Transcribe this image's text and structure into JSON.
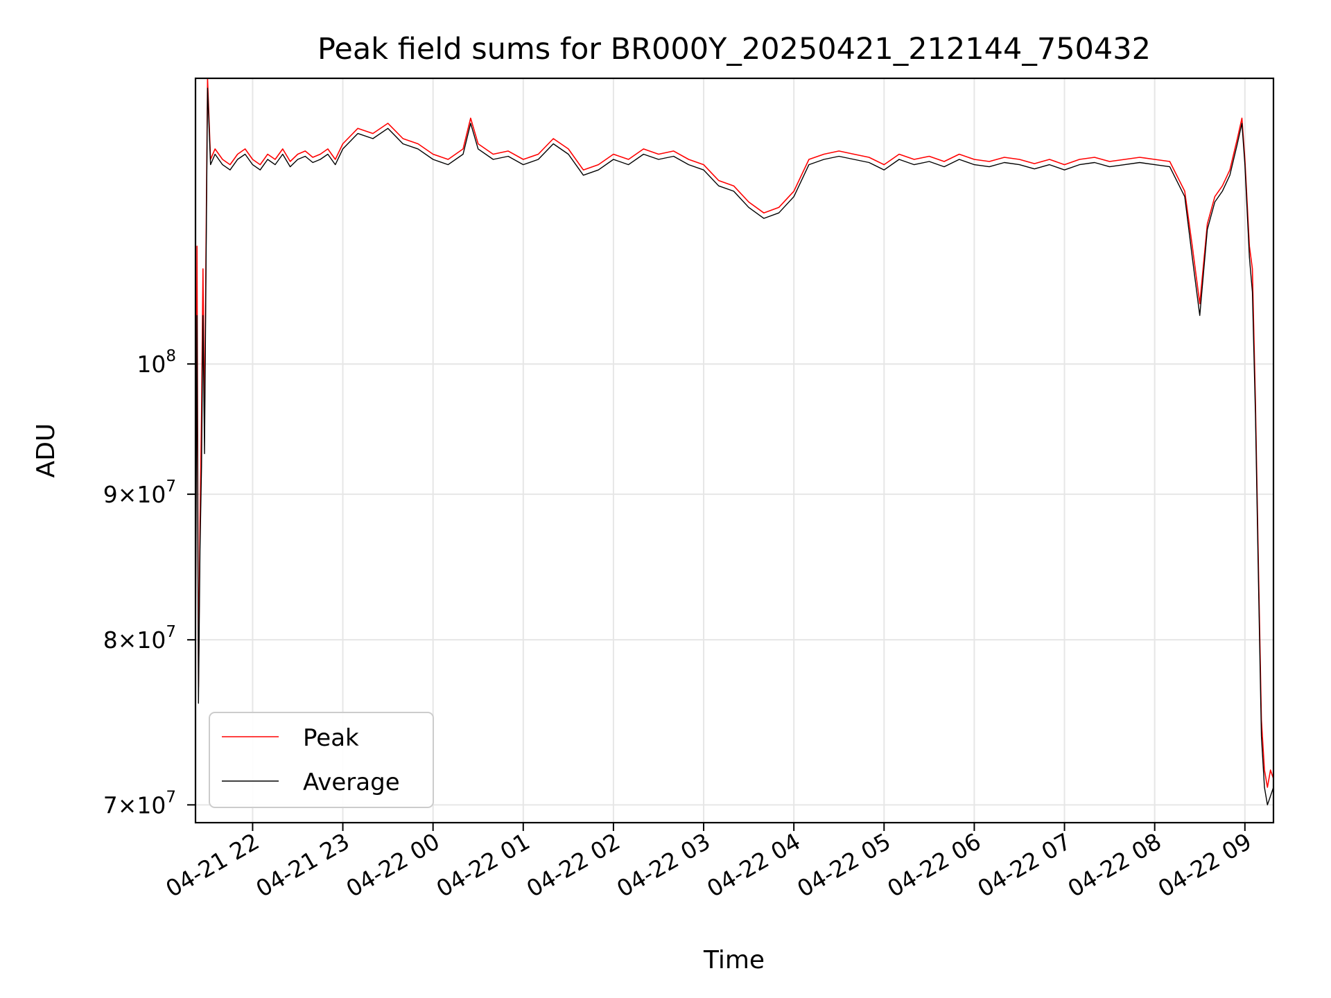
{
  "chart_data": {
    "type": "line",
    "title": "Peak field sums for BR000Y_20250421_212144_750432",
    "xlabel": "Time",
    "ylabel": "ADU",
    "y_scale": "log",
    "ylim": [
      69000000,
      126000000
    ],
    "xlim": [
      "2025-04-21 21:22",
      "2025-04-22 09:19"
    ],
    "grid": true,
    "legend_placement": "lower-left",
    "x_ticks": [
      {
        "t": "2025-04-21 22:00",
        "label": "04-21 22"
      },
      {
        "t": "2025-04-21 23:00",
        "label": "04-21 23"
      },
      {
        "t": "2025-04-22 00:00",
        "label": "04-22 00"
      },
      {
        "t": "2025-04-22 01:00",
        "label": "04-22 01"
      },
      {
        "t": "2025-04-22 02:00",
        "label": "04-22 02"
      },
      {
        "t": "2025-04-22 03:00",
        "label": "04-22 03"
      },
      {
        "t": "2025-04-22 04:00",
        "label": "04-22 04"
      },
      {
        "t": "2025-04-22 05:00",
        "label": "04-22 05"
      },
      {
        "t": "2025-04-22 06:00",
        "label": "04-22 06"
      },
      {
        "t": "2025-04-22 07:00",
        "label": "04-22 07"
      },
      {
        "t": "2025-04-22 08:00",
        "label": "04-22 08"
      },
      {
        "t": "2025-04-22 09:00",
        "label": "04-22 09"
      }
    ],
    "y_ticks": [
      {
        "v": 70000000,
        "base": "7×10",
        "exp": "7"
      },
      {
        "v": 80000000,
        "base": "8×10",
        "exp": "7"
      },
      {
        "v": 90000000,
        "base": "9×10",
        "exp": "7"
      },
      {
        "v": 100000000,
        "base": "10",
        "exp": "8"
      }
    ],
    "series": [
      {
        "name": "Peak",
        "color": "#ff0000",
        "points": [
          [
            "2025-04-21 21:22",
            80000000
          ],
          [
            "2025-04-21 21:23",
            110000000
          ],
          [
            "2025-04-21 21:24",
            77000000
          ],
          [
            "2025-04-21 21:25",
            88000000
          ],
          [
            "2025-04-21 21:26",
            96000000
          ],
          [
            "2025-04-21 21:27",
            108000000
          ],
          [
            "2025-04-21 21:28",
            95000000
          ],
          [
            "2025-04-21 21:29",
            110000000
          ],
          [
            "2025-04-21 21:30",
            126000000
          ],
          [
            "2025-04-21 21:32",
            118000000
          ],
          [
            "2025-04-21 21:35",
            119000000
          ],
          [
            "2025-04-21 21:40",
            118000000
          ],
          [
            "2025-04-21 21:45",
            117500000
          ],
          [
            "2025-04-21 21:50",
            118500000
          ],
          [
            "2025-04-21 21:55",
            119000000
          ],
          [
            "2025-04-21 22:00",
            118000000
          ],
          [
            "2025-04-21 22:05",
            117500000
          ],
          [
            "2025-04-21 22:10",
            118500000
          ],
          [
            "2025-04-21 22:15",
            118000000
          ],
          [
            "2025-04-21 22:20",
            119000000
          ],
          [
            "2025-04-21 22:25",
            117800000
          ],
          [
            "2025-04-21 22:30",
            118500000
          ],
          [
            "2025-04-21 22:35",
            118800000
          ],
          [
            "2025-04-21 22:40",
            118200000
          ],
          [
            "2025-04-21 22:45",
            118500000
          ],
          [
            "2025-04-21 22:50",
            119000000
          ],
          [
            "2025-04-21 22:55",
            118000000
          ],
          [
            "2025-04-21 23:00",
            119500000
          ],
          [
            "2025-04-21 23:10",
            121000000
          ],
          [
            "2025-04-21 23:20",
            120500000
          ],
          [
            "2025-04-21 23:30",
            121500000
          ],
          [
            "2025-04-21 23:40",
            120000000
          ],
          [
            "2025-04-21 23:50",
            119500000
          ],
          [
            "2025-04-22 00:00",
            118500000
          ],
          [
            "2025-04-22 00:10",
            118000000
          ],
          [
            "2025-04-22 00:20",
            119000000
          ],
          [
            "2025-04-22 00:25",
            122000000
          ],
          [
            "2025-04-22 00:30",
            119500000
          ],
          [
            "2025-04-22 00:40",
            118500000
          ],
          [
            "2025-04-22 00:50",
            118800000
          ],
          [
            "2025-04-22 01:00",
            118000000
          ],
          [
            "2025-04-22 01:10",
            118500000
          ],
          [
            "2025-04-22 01:20",
            120000000
          ],
          [
            "2025-04-22 01:30",
            119000000
          ],
          [
            "2025-04-22 01:40",
            117000000
          ],
          [
            "2025-04-22 01:50",
            117500000
          ],
          [
            "2025-04-22 02:00",
            118500000
          ],
          [
            "2025-04-22 02:10",
            118000000
          ],
          [
            "2025-04-22 02:20",
            119000000
          ],
          [
            "2025-04-22 02:30",
            118500000
          ],
          [
            "2025-04-22 02:40",
            118800000
          ],
          [
            "2025-04-22 02:50",
            118000000
          ],
          [
            "2025-04-22 03:00",
            117500000
          ],
          [
            "2025-04-22 03:10",
            116000000
          ],
          [
            "2025-04-22 03:20",
            115500000
          ],
          [
            "2025-04-22 03:30",
            114000000
          ],
          [
            "2025-04-22 03:40",
            113000000
          ],
          [
            "2025-04-22 03:50",
            113500000
          ],
          [
            "2025-04-22 04:00",
            115000000
          ],
          [
            "2025-04-22 04:10",
            118000000
          ],
          [
            "2025-04-22 04:20",
            118500000
          ],
          [
            "2025-04-22 04:30",
            118800000
          ],
          [
            "2025-04-22 04:40",
            118500000
          ],
          [
            "2025-04-22 04:50",
            118200000
          ],
          [
            "2025-04-22 05:00",
            117500000
          ],
          [
            "2025-04-22 05:10",
            118500000
          ],
          [
            "2025-04-22 05:20",
            118000000
          ],
          [
            "2025-04-22 05:30",
            118300000
          ],
          [
            "2025-04-22 05:40",
            117800000
          ],
          [
            "2025-04-22 05:50",
            118500000
          ],
          [
            "2025-04-22 06:00",
            118000000
          ],
          [
            "2025-04-22 06:10",
            117800000
          ],
          [
            "2025-04-22 06:20",
            118200000
          ],
          [
            "2025-04-22 06:30",
            118000000
          ],
          [
            "2025-04-22 06:40",
            117600000
          ],
          [
            "2025-04-22 06:50",
            118000000
          ],
          [
            "2025-04-22 07:00",
            117500000
          ],
          [
            "2025-04-22 07:10",
            118000000
          ],
          [
            "2025-04-22 07:20",
            118200000
          ],
          [
            "2025-04-22 07:30",
            117800000
          ],
          [
            "2025-04-22 07:40",
            118000000
          ],
          [
            "2025-04-22 07:50",
            118200000
          ],
          [
            "2025-04-22 08:00",
            118000000
          ],
          [
            "2025-04-22 08:10",
            117800000
          ],
          [
            "2025-04-22 08:20",
            115000000
          ],
          [
            "2025-04-22 08:25",
            110000000
          ],
          [
            "2025-04-22 08:30",
            105000000
          ],
          [
            "2025-04-22 08:35",
            112000000
          ],
          [
            "2025-04-22 08:40",
            114500000
          ],
          [
            "2025-04-22 08:45",
            115500000
          ],
          [
            "2025-04-22 08:50",
            117000000
          ],
          [
            "2025-04-22 08:55",
            120000000
          ],
          [
            "2025-04-22 08:58",
            122000000
          ],
          [
            "2025-04-22 09:00",
            118000000
          ],
          [
            "2025-04-22 09:03",
            110000000
          ],
          [
            "2025-04-22 09:05",
            108000000
          ],
          [
            "2025-04-22 09:07",
            97000000
          ],
          [
            "2025-04-22 09:09",
            85000000
          ],
          [
            "2025-04-22 09:11",
            75000000
          ],
          [
            "2025-04-22 09:13",
            72000000
          ],
          [
            "2025-04-22 09:15",
            71000000
          ],
          [
            "2025-04-22 09:17",
            72000000
          ],
          [
            "2025-04-22 09:19",
            71500000
          ]
        ]
      },
      {
        "name": "Average",
        "color": "#000000",
        "points": [
          [
            "2025-04-21 21:22",
            78000000
          ],
          [
            "2025-04-21 21:23",
            104000000
          ],
          [
            "2025-04-21 21:24",
            76000000
          ],
          [
            "2025-04-21 21:25",
            86000000
          ],
          [
            "2025-04-21 21:26",
            92000000
          ],
          [
            "2025-04-21 21:27",
            104000000
          ],
          [
            "2025-04-21 21:28",
            93000000
          ],
          [
            "2025-04-21 21:29",
            108000000
          ],
          [
            "2025-04-21 21:30",
            125000000
          ],
          [
            "2025-04-21 21:32",
            117500000
          ],
          [
            "2025-04-21 21:35",
            118500000
          ],
          [
            "2025-04-21 21:40",
            117500000
          ],
          [
            "2025-04-21 21:45",
            117000000
          ],
          [
            "2025-04-21 21:50",
            118000000
          ],
          [
            "2025-04-21 21:55",
            118500000
          ],
          [
            "2025-04-21 22:00",
            117500000
          ],
          [
            "2025-04-21 22:05",
            117000000
          ],
          [
            "2025-04-21 22:10",
            118000000
          ],
          [
            "2025-04-21 22:15",
            117500000
          ],
          [
            "2025-04-21 22:20",
            118500000
          ],
          [
            "2025-04-21 22:25",
            117300000
          ],
          [
            "2025-04-21 22:30",
            118000000
          ],
          [
            "2025-04-21 22:35",
            118300000
          ],
          [
            "2025-04-21 22:40",
            117700000
          ],
          [
            "2025-04-21 22:45",
            118000000
          ],
          [
            "2025-04-21 22:50",
            118500000
          ],
          [
            "2025-04-21 22:55",
            117500000
          ],
          [
            "2025-04-21 23:00",
            119000000
          ],
          [
            "2025-04-21 23:10",
            120500000
          ],
          [
            "2025-04-21 23:20",
            120000000
          ],
          [
            "2025-04-21 23:30",
            121000000
          ],
          [
            "2025-04-21 23:40",
            119500000
          ],
          [
            "2025-04-21 23:50",
            119000000
          ],
          [
            "2025-04-22 00:00",
            118000000
          ],
          [
            "2025-04-22 00:10",
            117500000
          ],
          [
            "2025-04-22 00:20",
            118500000
          ],
          [
            "2025-04-22 00:25",
            121500000
          ],
          [
            "2025-04-22 00:30",
            119000000
          ],
          [
            "2025-04-22 00:40",
            118000000
          ],
          [
            "2025-04-22 00:50",
            118300000
          ],
          [
            "2025-04-22 01:00",
            117500000
          ],
          [
            "2025-04-22 01:10",
            118000000
          ],
          [
            "2025-04-22 01:20",
            119500000
          ],
          [
            "2025-04-22 01:30",
            118500000
          ],
          [
            "2025-04-22 01:40",
            116500000
          ],
          [
            "2025-04-22 01:50",
            117000000
          ],
          [
            "2025-04-22 02:00",
            118000000
          ],
          [
            "2025-04-22 02:10",
            117500000
          ],
          [
            "2025-04-22 02:20",
            118500000
          ],
          [
            "2025-04-22 02:30",
            118000000
          ],
          [
            "2025-04-22 02:40",
            118300000
          ],
          [
            "2025-04-22 02:50",
            117500000
          ],
          [
            "2025-04-22 03:00",
            117000000
          ],
          [
            "2025-04-22 03:10",
            115500000
          ],
          [
            "2025-04-22 03:20",
            115000000
          ],
          [
            "2025-04-22 03:30",
            113500000
          ],
          [
            "2025-04-22 03:40",
            112500000
          ],
          [
            "2025-04-22 03:50",
            113000000
          ],
          [
            "2025-04-22 04:00",
            114500000
          ],
          [
            "2025-04-22 04:10",
            117500000
          ],
          [
            "2025-04-22 04:20",
            118000000
          ],
          [
            "2025-04-22 04:30",
            118300000
          ],
          [
            "2025-04-22 04:40",
            118000000
          ],
          [
            "2025-04-22 04:50",
            117700000
          ],
          [
            "2025-04-22 05:00",
            117000000
          ],
          [
            "2025-04-22 05:10",
            118000000
          ],
          [
            "2025-04-22 05:20",
            117500000
          ],
          [
            "2025-04-22 05:30",
            117800000
          ],
          [
            "2025-04-22 05:40",
            117300000
          ],
          [
            "2025-04-22 05:50",
            118000000
          ],
          [
            "2025-04-22 06:00",
            117500000
          ],
          [
            "2025-04-22 06:10",
            117300000
          ],
          [
            "2025-04-22 06:20",
            117700000
          ],
          [
            "2025-04-22 06:30",
            117500000
          ],
          [
            "2025-04-22 06:40",
            117100000
          ],
          [
            "2025-04-22 06:50",
            117500000
          ],
          [
            "2025-04-22 07:00",
            117000000
          ],
          [
            "2025-04-22 07:10",
            117500000
          ],
          [
            "2025-04-22 07:20",
            117700000
          ],
          [
            "2025-04-22 07:30",
            117300000
          ],
          [
            "2025-04-22 07:40",
            117500000
          ],
          [
            "2025-04-22 07:50",
            117700000
          ],
          [
            "2025-04-22 08:00",
            117500000
          ],
          [
            "2025-04-22 08:10",
            117300000
          ],
          [
            "2025-04-22 08:20",
            114500000
          ],
          [
            "2025-04-22 08:25",
            109000000
          ],
          [
            "2025-04-22 08:30",
            104000000
          ],
          [
            "2025-04-22 08:35",
            111500000
          ],
          [
            "2025-04-22 08:40",
            114000000
          ],
          [
            "2025-04-22 08:45",
            115000000
          ],
          [
            "2025-04-22 08:50",
            116500000
          ],
          [
            "2025-04-22 08:55",
            119500000
          ],
          [
            "2025-04-22 08:58",
            121500000
          ],
          [
            "2025-04-22 09:00",
            117500000
          ],
          [
            "2025-04-22 09:03",
            109000000
          ],
          [
            "2025-04-22 09:05",
            106000000
          ],
          [
            "2025-04-22 09:07",
            96000000
          ],
          [
            "2025-04-22 09:09",
            84000000
          ],
          [
            "2025-04-22 09:11",
            74000000
          ],
          [
            "2025-04-22 09:13",
            71000000
          ],
          [
            "2025-04-22 09:15",
            70000000
          ],
          [
            "2025-04-22 09:17",
            70500000
          ],
          [
            "2025-04-22 09:19",
            71000000
          ]
        ]
      }
    ]
  }
}
